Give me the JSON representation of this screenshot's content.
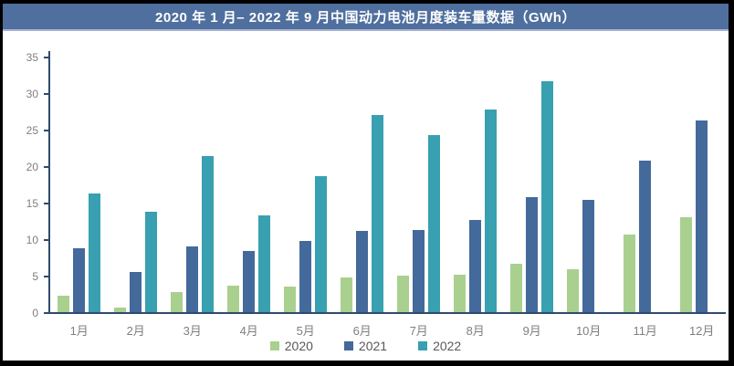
{
  "window": {
    "title": "2020 年 1 月– 2022 年 9 月中国动力电池月度装车量数据（GWh）"
  },
  "chart_data": {
    "type": "bar",
    "title": "2020 年 1 月– 2022 年 9 月中国动力电池月度装车量数据（GWh）",
    "categories": [
      "1月",
      "2月",
      "3月",
      "4月",
      "5月",
      "6月",
      "7月",
      "8月",
      "9月",
      "10月",
      "11月",
      "12月"
    ],
    "series": [
      {
        "name": "2020",
        "color": "#a9d08e",
        "values": [
          2.3,
          0.6,
          2.8,
          3.6,
          3.5,
          4.7,
          5.0,
          5.1,
          6.6,
          5.9,
          10.6,
          13.0
        ]
      },
      {
        "name": "2021",
        "color": "#44699b",
        "values": [
          8.7,
          5.5,
          9.0,
          8.4,
          9.8,
          11.1,
          11.3,
          12.6,
          15.7,
          15.4,
          20.8,
          26.2
        ]
      },
      {
        "name": "2022",
        "color": "#38a0b0",
        "values": [
          16.2,
          13.7,
          21.4,
          13.3,
          18.6,
          27.0,
          24.2,
          27.8,
          31.6,
          null,
          null,
          null
        ]
      }
    ],
    "xlabel": "",
    "ylabel": "",
    "ylim": [
      0,
      35
    ],
    "yticks": [
      0,
      5,
      10,
      15,
      20,
      25,
      30,
      35
    ],
    "grid": false,
    "legend_position": "bottom"
  },
  "colors": {
    "frame_border": "#000000",
    "header_bg": "#4f6f9e",
    "header_underline": "#a9b2d3",
    "axis": "#2f4a6e",
    "axis_label": "#7f7f7f",
    "legend_text": "#595959",
    "series_2020": "#a9d08e",
    "series_2021": "#44699b",
    "series_2022": "#38a0b0"
  }
}
